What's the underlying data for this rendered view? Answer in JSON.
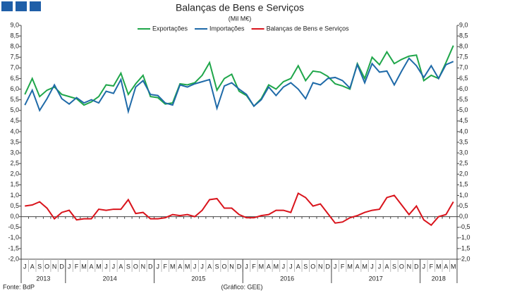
{
  "chart_data": {
    "type": "line",
    "title": "Balanças de Bens e Serviços",
    "subtitle": "(Mil M€)",
    "source": "Fonte: BdP",
    "credit": "(Gráfico: GEE)",
    "categories": [
      "J",
      "A",
      "S",
      "O",
      "N",
      "D",
      "J",
      "F",
      "M",
      "A",
      "M",
      "J",
      "J",
      "A",
      "S",
      "O",
      "N",
      "D",
      "J",
      "F",
      "M",
      "A",
      "M",
      "J",
      "J",
      "A",
      "S",
      "O",
      "N",
      "D",
      "J",
      "F",
      "M",
      "A",
      "M",
      "J",
      "J",
      "A",
      "S",
      "O",
      "N",
      "D",
      "J",
      "F",
      "M",
      "A",
      "M",
      "J",
      "J",
      "A",
      "S",
      "O",
      "N",
      "D",
      "J",
      "F",
      "M",
      "A",
      "M"
    ],
    "years": [
      "2013",
      "2014",
      "2015",
      "2016",
      "2017",
      "2018"
    ],
    "series": [
      {
        "name": "Exportações",
        "color": "#1fa64a",
        "values": [
          5.75,
          6.5,
          5.65,
          5.95,
          6.1,
          5.75,
          5.65,
          5.55,
          5.25,
          5.4,
          5.65,
          6.2,
          6.15,
          6.75,
          5.75,
          6.25,
          6.65,
          5.65,
          5.6,
          5.3,
          5.35,
          6.25,
          6.2,
          6.3,
          6.65,
          7.25,
          5.95,
          6.5,
          6.7,
          5.9,
          5.7,
          5.2,
          5.55,
          6.2,
          6.0,
          6.35,
          6.5,
          7.1,
          6.4,
          6.85,
          6.8,
          6.6,
          6.25,
          6.15,
          6.0,
          7.2,
          6.5,
          7.5,
          7.15,
          7.75,
          7.2,
          7.4,
          7.55,
          7.6,
          6.4,
          6.65,
          6.5,
          7.25,
          8.05
        ]
      },
      {
        "name": "Importações",
        "color": "#1f6aa8",
        "values": [
          5.25,
          5.95,
          5.0,
          5.55,
          6.2,
          5.55,
          5.3,
          5.6,
          5.35,
          5.5,
          5.35,
          5.9,
          5.8,
          6.45,
          4.95,
          6.1,
          6.4,
          5.75,
          5.7,
          5.35,
          5.25,
          6.2,
          6.1,
          6.25,
          6.35,
          6.45,
          5.1,
          6.15,
          6.3,
          6.0,
          5.75,
          5.2,
          5.5,
          6.1,
          5.7,
          6.1,
          6.3,
          6.0,
          5.55,
          6.3,
          6.2,
          6.5,
          6.55,
          6.4,
          6.05,
          7.15,
          6.3,
          7.2,
          6.8,
          6.85,
          6.2,
          6.85,
          7.45,
          7.1,
          6.55,
          7.1,
          6.5,
          7.15,
          7.3
        ]
      },
      {
        "name": "Balanças de Bens e Serviços",
        "color": "#d9141c",
        "values": [
          0.5,
          0.55,
          0.7,
          0.4,
          -0.1,
          0.2,
          0.3,
          -0.15,
          -0.1,
          -0.1,
          0.35,
          0.3,
          0.35,
          0.35,
          0.8,
          0.15,
          0.2,
          -0.1,
          -0.1,
          -0.05,
          0.1,
          0.05,
          0.1,
          0.0,
          0.3,
          0.8,
          0.85,
          0.4,
          0.4,
          0.1,
          -0.05,
          -0.05,
          0.05,
          0.1,
          0.3,
          0.3,
          0.2,
          1.1,
          0.9,
          0.5,
          0.6,
          0.15,
          -0.3,
          -0.25,
          -0.05,
          0.05,
          0.2,
          0.3,
          0.35,
          0.9,
          1.0,
          0.55,
          0.1,
          0.5,
          -0.15,
          -0.4,
          0.0,
          0.1,
          0.7
        ]
      }
    ],
    "ylim": [
      -2,
      9
    ],
    "yticks": [
      {
        "value": 9,
        "label": "9,0"
      },
      {
        "value": 8.5,
        "label": "8,5"
      },
      {
        "value": 8,
        "label": "8,0"
      },
      {
        "value": 7.5,
        "label": "7,5"
      },
      {
        "value": 7,
        "label": "7,0"
      },
      {
        "value": 6.5,
        "label": "6,5"
      },
      {
        "value": 6,
        "label": "6,0"
      },
      {
        "value": 5.5,
        "label": "5,5"
      },
      {
        "value": 5,
        "label": "5,0"
      },
      {
        "value": 4.5,
        "label": "4,5"
      },
      {
        "value": 4,
        "label": "4,0"
      },
      {
        "value": 3.5,
        "label": "3,5"
      },
      {
        "value": 3,
        "label": "3,0"
      },
      {
        "value": 2.5,
        "label": "2,5"
      },
      {
        "value": 2,
        "label": "2,0"
      },
      {
        "value": 1.5,
        "label": "1,5"
      },
      {
        "value": 1,
        "label": "1,0"
      },
      {
        "value": 0.5,
        "label": "0,5"
      },
      {
        "value": 0,
        "label": "0,0"
      },
      {
        "value": -0.5,
        "label": "-0,5"
      },
      {
        "value": -1,
        "label": "-1,0"
      },
      {
        "value": -1.5,
        "label": "-1,5"
      },
      {
        "value": -2,
        "label": "-2,0"
      }
    ],
    "grid": false
  }
}
